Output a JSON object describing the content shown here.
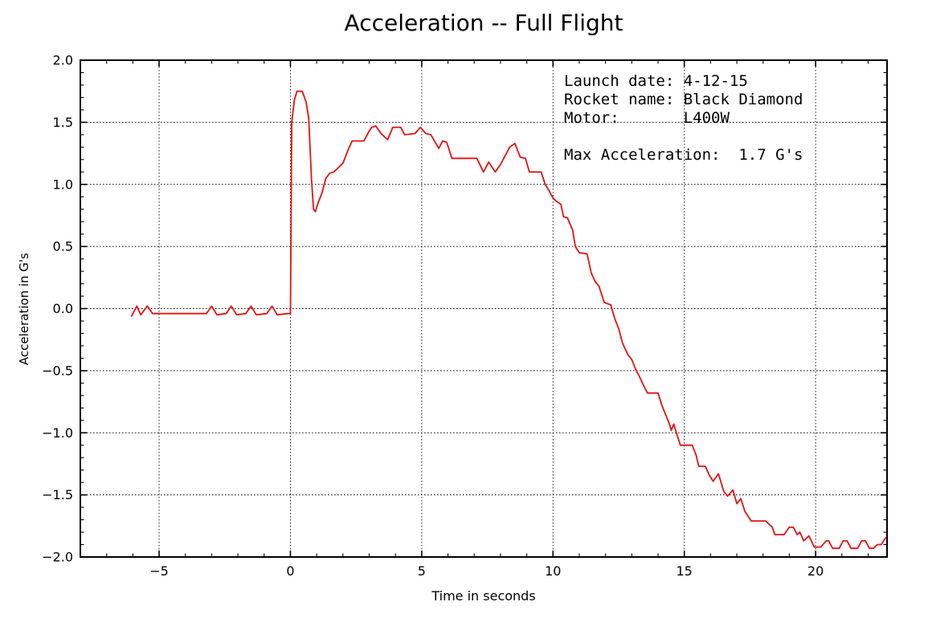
{
  "figure": {
    "title": "Acceleration -- Full Flight"
  },
  "axes": {
    "xlabel": "Time in seconds",
    "ylabel": "Acceleration in G's"
  },
  "annotation": {
    "text": "Launch date: 4-12-15\nRocket name: Black Diamond\nMotor:       L400W\n\nMax Acceleration:  1.7 G's",
    "launch_date": "4-12-15",
    "rocket_name": "Black Diamond",
    "motor": "L400W",
    "max_acceleration": "1.7 G's"
  },
  "chart_data": {
    "type": "line",
    "title": "Acceleration -- Full Flight",
    "xlabel": "Time in seconds",
    "ylabel": "Acceleration in G's",
    "xlim": [
      -8,
      22.72
    ],
    "ylim": [
      -2,
      2
    ],
    "x_major_ticks": [
      -5,
      0,
      5,
      10,
      15,
      20
    ],
    "x_tick_labels": [
      "−5",
      "0",
      "5",
      "10",
      "15",
      "20"
    ],
    "x_minor_step": 1,
    "y_major_ticks": [
      -2,
      -1.5,
      -1,
      -0.5,
      0,
      0.5,
      1,
      1.5,
      2
    ],
    "y_tick_labels": [
      "−2.0",
      "−1.5",
      "−1.0",
      "−0.5",
      "0.0",
      "0.5",
      "1.0",
      "1.5",
      "2.0"
    ],
    "y_minor_step": 0.1,
    "grid": "dotted at major ticks, both axes",
    "legend": "none",
    "line_color": "#e51212",
    "max_acceleration_g": 1.7,
    "annotation_anchor": {
      "x": 10.42,
      "y": 1.9
    },
    "series": [
      {
        "name": "acceleration",
        "points": [
          [
            -6.05,
            -0.06
          ],
          [
            -5.85,
            0.02
          ],
          [
            -5.7,
            -0.05
          ],
          [
            -5.45,
            0.02
          ],
          [
            -5.25,
            -0.04
          ],
          [
            -3.2,
            -0.04
          ],
          [
            -3.0,
            0.02
          ],
          [
            -2.8,
            -0.05
          ],
          [
            -2.45,
            -0.04
          ],
          [
            -2.25,
            0.02
          ],
          [
            -2.05,
            -0.05
          ],
          [
            -1.7,
            -0.04
          ],
          [
            -1.5,
            0.02
          ],
          [
            -1.3,
            -0.05
          ],
          [
            -0.9,
            -0.04
          ],
          [
            -0.7,
            0.02
          ],
          [
            -0.5,
            -0.05
          ],
          [
            -0.1,
            -0.04
          ],
          [
            0.0,
            -0.04
          ],
          [
            0.05,
            1.5
          ],
          [
            0.15,
            1.68
          ],
          [
            0.25,
            1.75
          ],
          [
            0.45,
            1.75
          ],
          [
            0.6,
            1.66
          ],
          [
            0.7,
            1.53
          ],
          [
            0.8,
            1.05
          ],
          [
            0.88,
            0.8
          ],
          [
            0.95,
            0.78
          ],
          [
            1.05,
            0.85
          ],
          [
            1.2,
            0.93
          ],
          [
            1.35,
            1.05
          ],
          [
            1.5,
            1.09
          ],
          [
            1.65,
            1.1
          ],
          [
            1.8,
            1.13
          ],
          [
            2.0,
            1.17
          ],
          [
            2.2,
            1.28
          ],
          [
            2.35,
            1.35
          ],
          [
            2.8,
            1.35
          ],
          [
            3.0,
            1.43
          ],
          [
            3.1,
            1.46
          ],
          [
            3.25,
            1.47
          ],
          [
            3.45,
            1.41
          ],
          [
            3.7,
            1.36
          ],
          [
            3.9,
            1.46
          ],
          [
            4.2,
            1.46
          ],
          [
            4.35,
            1.4
          ],
          [
            4.75,
            1.41
          ],
          [
            4.95,
            1.46
          ],
          [
            5.15,
            1.41
          ],
          [
            5.35,
            1.4
          ],
          [
            5.65,
            1.29
          ],
          [
            5.8,
            1.35
          ],
          [
            5.95,
            1.34
          ],
          [
            6.15,
            1.21
          ],
          [
            7.1,
            1.21
          ],
          [
            7.35,
            1.1
          ],
          [
            7.55,
            1.18
          ],
          [
            7.8,
            1.1
          ],
          [
            8.0,
            1.16
          ],
          [
            8.35,
            1.3
          ],
          [
            8.55,
            1.33
          ],
          [
            8.75,
            1.22
          ],
          [
            8.95,
            1.21
          ],
          [
            9.1,
            1.1
          ],
          [
            9.55,
            1.1
          ],
          [
            9.7,
            1.0
          ],
          [
            9.85,
            0.95
          ],
          [
            10.0,
            0.89
          ],
          [
            10.15,
            0.86
          ],
          [
            10.3,
            0.84
          ],
          [
            10.4,
            0.74
          ],
          [
            10.55,
            0.73
          ],
          [
            10.75,
            0.63
          ],
          [
            10.85,
            0.5
          ],
          [
            11.0,
            0.45
          ],
          [
            11.3,
            0.44
          ],
          [
            11.45,
            0.29
          ],
          [
            11.6,
            0.22
          ],
          [
            11.75,
            0.18
          ],
          [
            11.95,
            0.05
          ],
          [
            12.2,
            0.03
          ],
          [
            12.35,
            -0.08
          ],
          [
            12.5,
            -0.16
          ],
          [
            12.65,
            -0.28
          ],
          [
            12.85,
            -0.37
          ],
          [
            13.0,
            -0.41
          ],
          [
            13.15,
            -0.49
          ],
          [
            13.3,
            -0.55
          ],
          [
            13.45,
            -0.62
          ],
          [
            13.6,
            -0.68
          ],
          [
            14.0,
            -0.68
          ],
          [
            14.15,
            -0.78
          ],
          [
            14.3,
            -0.86
          ],
          [
            14.42,
            -0.92
          ],
          [
            14.5,
            -0.98
          ],
          [
            14.6,
            -0.93
          ],
          [
            14.7,
            -1.0
          ],
          [
            14.85,
            -1.1
          ],
          [
            15.3,
            -1.1
          ],
          [
            15.45,
            -1.18
          ],
          [
            15.55,
            -1.27
          ],
          [
            15.8,
            -1.27
          ],
          [
            15.95,
            -1.34
          ],
          [
            16.1,
            -1.39
          ],
          [
            16.3,
            -1.33
          ],
          [
            16.5,
            -1.47
          ],
          [
            16.65,
            -1.51
          ],
          [
            16.85,
            -1.46
          ],
          [
            17.0,
            -1.57
          ],
          [
            17.15,
            -1.53
          ],
          [
            17.3,
            -1.63
          ],
          [
            17.55,
            -1.71
          ],
          [
            18.1,
            -1.71
          ],
          [
            18.35,
            -1.76
          ],
          [
            18.45,
            -1.82
          ],
          [
            18.8,
            -1.82
          ],
          [
            19.0,
            -1.76
          ],
          [
            19.15,
            -1.76
          ],
          [
            19.3,
            -1.82
          ],
          [
            19.4,
            -1.8
          ],
          [
            19.55,
            -1.87
          ],
          [
            19.75,
            -1.83
          ],
          [
            19.95,
            -1.92
          ],
          [
            20.2,
            -1.92
          ],
          [
            20.4,
            -1.87
          ],
          [
            20.5,
            -1.87
          ],
          [
            20.65,
            -1.93
          ],
          [
            20.9,
            -1.93
          ],
          [
            21.05,
            -1.87
          ],
          [
            21.2,
            -1.87
          ],
          [
            21.35,
            -1.93
          ],
          [
            21.6,
            -1.93
          ],
          [
            21.75,
            -1.87
          ],
          [
            21.9,
            -1.87
          ],
          [
            22.05,
            -1.93
          ],
          [
            22.2,
            -1.93
          ],
          [
            22.35,
            -1.9
          ],
          [
            22.5,
            -1.9
          ],
          [
            22.65,
            -1.85
          ],
          [
            22.72,
            -1.84
          ]
        ]
      }
    ]
  }
}
